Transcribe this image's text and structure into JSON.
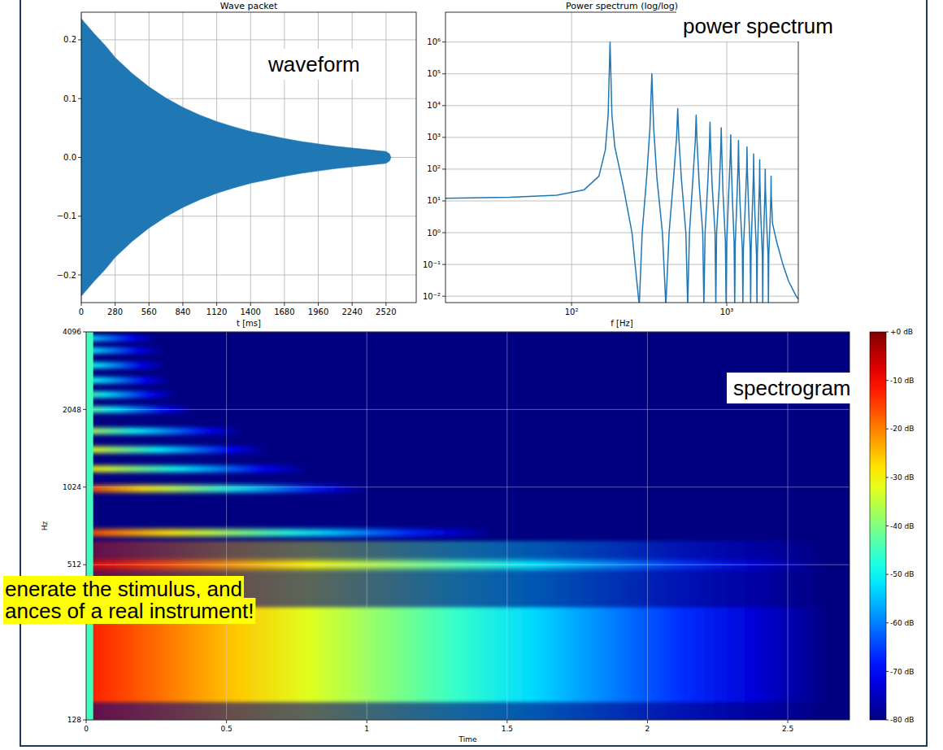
{
  "chart_data": [
    {
      "type": "area",
      "title": "Wave packet",
      "x_label": "t [ms]",
      "x": [
        0,
        100,
        200,
        280,
        420,
        560,
        700,
        840,
        980,
        1120,
        1260,
        1400,
        1540,
        1680,
        1820,
        1960,
        2100,
        2240,
        2380,
        2520,
        2550,
        2560
      ],
      "series": [
        {
          "color": "#1f77b4",
          "values": [
            0.236,
            0.212,
            0.19,
            0.17,
            0.143,
            0.12,
            0.101,
            0.085,
            0.072,
            0.061,
            0.052,
            0.044,
            0.038,
            0.032,
            0.027,
            0.023,
            0.019,
            0.016,
            0.013,
            0.01,
            0.006,
            0
          ]
        },
        {
          "color": "#1f77b4",
          "values": [
            -0.236,
            -0.212,
            -0.19,
            -0.17,
            -0.143,
            -0.12,
            -0.101,
            -0.085,
            -0.072,
            -0.061,
            -0.052,
            -0.044,
            -0.038,
            -0.032,
            -0.027,
            -0.023,
            -0.019,
            -0.016,
            -0.013,
            -0.01,
            -0.006,
            0
          ]
        }
      ],
      "xlim": [
        0,
        2770
      ],
      "ylim": [
        -0.247,
        0.247
      ],
      "xticks": [
        0,
        280,
        560,
        840,
        1120,
        1400,
        1680,
        1960,
        2240,
        2520
      ],
      "yticks": [
        {
          "value": -0.2,
          "label": "−0.2"
        },
        {
          "value": -0.1,
          "label": "−0.1"
        },
        {
          "value": 0,
          "label": "0.0"
        },
        0.1,
        0.2
      ],
      "grid": true,
      "annotations": [
        "waveform"
      ]
    },
    {
      "type": "line",
      "title": "Power spectrum (log/log)",
      "x_label": "f [Hz]",
      "x": [
        15,
        40,
        80,
        120,
        150,
        165,
        172,
        177,
        182,
        190,
        215,
        245,
        273,
        285,
        305,
        320,
        329,
        338,
        355,
        385,
        405,
        425,
        455,
        475,
        483,
        491,
        510,
        545,
        560,
        575,
        605,
        627,
        635,
        643,
        665,
        700,
        712,
        725,
        755,
        773,
        780,
        787,
        805,
        840,
        850,
        860,
        895,
        914,
        921,
        928,
        945,
        980,
        990,
        1000,
        1030,
        1053,
        1060,
        1067,
        1085,
        1115,
        1125,
        1135,
        1165,
        1183,
        1190,
        1197,
        1215,
        1260,
        1270,
        1280,
        1320,
        1343,
        1350,
        1357,
        1380,
        1415,
        1425,
        1435,
        1465,
        1484,
        1490,
        1496,
        1515,
        1555,
        1565,
        1575,
        1605,
        1624,
        1630,
        1636,
        1655,
        1695,
        1705,
        1715,
        1745,
        1764,
        1770,
        1776,
        1800,
        1845,
        1855,
        1865,
        1900,
        1924,
        1930,
        1936,
        1970,
        2100,
        2300,
        2500,
        2800,
        2900
      ],
      "values": [
        12,
        13,
        15,
        22,
        60,
        400,
        5000,
        1000000,
        5000,
        500,
        30,
        1,
        0.005,
        1,
        60,
        2000,
        100000,
        2000,
        50,
        1,
        0.005,
        1,
        60,
        1000,
        8000,
        1000,
        50,
        1,
        0.005,
        1,
        50,
        800,
        5000,
        800,
        30,
        1,
        0.005,
        1,
        40,
        500,
        3000,
        500,
        30,
        1,
        0.005,
        1,
        30,
        400,
        2000,
        400,
        20,
        0.5,
        0.005,
        0.5,
        20,
        250,
        1200,
        250,
        15,
        0.5,
        0.005,
        0.5,
        15,
        150,
        800,
        150,
        10,
        0.3,
        0.005,
        0.3,
        10,
        100,
        500,
        100,
        8,
        0.3,
        0.005,
        0.3,
        8,
        60,
        300,
        60,
        5,
        0.2,
        0.005,
        0.2,
        5,
        40,
        200,
        40,
        4,
        0.2,
        0.005,
        0.2,
        4,
        25,
        100,
        25,
        3,
        0.2,
        0.005,
        0.2,
        2,
        15,
        60,
        15,
        2,
        0.5,
        0.1,
        0.03,
        0.01,
        0.008
      ],
      "color": "#1f77b4",
      "log": true,
      "xlim": [
        15.4,
        2890
      ],
      "ylim": [
        0.0063,
        8700000
      ],
      "xticks": [
        {
          "value": 100,
          "label": "10²"
        },
        {
          "value": 1000,
          "label": "10³"
        }
      ],
      "yticks": [
        {
          "value": 0.01,
          "label": "10⁻²"
        },
        {
          "value": 0.1,
          "label": "10⁻¹"
        },
        {
          "value": 1,
          "label": "10⁰"
        },
        {
          "value": 10,
          "label": "10¹"
        },
        {
          "value": 100,
          "label": "10²"
        },
        {
          "value": 1000,
          "label": "10³"
        },
        {
          "value": 10000,
          "label": "10⁴"
        },
        {
          "value": 100000,
          "label": "10⁵"
        },
        {
          "value": 1000000,
          "label": "10⁶"
        }
      ],
      "grid": true,
      "annotations": [
        "power spectrum"
      ]
    },
    {
      "type": "spectrogram",
      "x_label": "Time",
      "y_label": "Hz",
      "log": "y",
      "xlim": [
        0,
        2.72
      ],
      "ylim": [
        128,
        4096
      ],
      "xticks": [
        0,
        0.5,
        1,
        1.5,
        2,
        2.5
      ],
      "yticks": [
        128,
        512,
        1024,
        2048,
        4096
      ],
      "grid": true,
      "onset": {
        "end": 0.025,
        "db": -45
      },
      "bands": [
        {
          "freq": 250,
          "spread": 100,
          "end": 2.65,
          "db": -12
        },
        {
          "freq": 512,
          "spread": 12,
          "end": 2.65,
          "db": -8
        },
        {
          "freq": 681,
          "spread": 14,
          "end": 1.45,
          "db": -15
        },
        {
          "freq": 1010,
          "spread": 20,
          "end": 1.0,
          "db": -15
        },
        {
          "freq": 1205,
          "spread": 22,
          "end": 0.79,
          "db": -28
        },
        {
          "freq": 1430,
          "spread": 26,
          "end": 0.65,
          "db": -30
        },
        {
          "freq": 1690,
          "spread": 30,
          "end": 0.56,
          "db": -35
        },
        {
          "freq": 2048,
          "spread": 36,
          "end": 0.38,
          "db": -40
        },
        {
          "freq": 2340,
          "spread": 40,
          "end": 0.32,
          "db": -42
        },
        {
          "freq": 2660,
          "spread": 45,
          "end": 0.3,
          "db": -45
        },
        {
          "freq": 3040,
          "spread": 50,
          "end": 0.28,
          "db": -45
        },
        {
          "freq": 3470,
          "spread": 55,
          "end": 0.27,
          "db": -48
        },
        {
          "freq": 3870,
          "spread": 60,
          "end": 0.25,
          "db": -50
        }
      ],
      "color_range": [
        -80,
        0
      ],
      "color_ticks": [
        {
          "value": 0,
          "label": "+0 dB"
        },
        {
          "value": -10,
          "label": "-10 dB"
        },
        {
          "value": -20,
          "label": "-20 dB"
        },
        {
          "value": -30,
          "label": "-30 dB"
        },
        {
          "value": -40,
          "label": "-40 dB"
        },
        {
          "value": -50,
          "label": "-50 dB"
        },
        {
          "value": -60,
          "label": "-60 dB"
        },
        {
          "value": -70,
          "label": "-70 dB"
        },
        {
          "value": -80,
          "label": "-80 dB"
        }
      ],
      "annotations": [
        "spectrogram"
      ]
    }
  ],
  "annotations": [
    "enerate the stimulus, and",
    "ances of a real instrument!"
  ]
}
